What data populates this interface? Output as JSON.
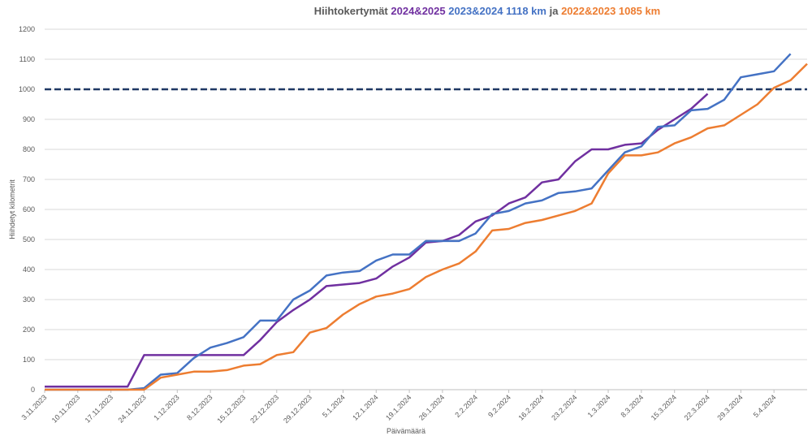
{
  "chart_data": {
    "type": "line",
    "title_parts": [
      {
        "text": "Hiihtokertymät",
        "color": "#595959"
      },
      {
        "text": "2024&2025",
        "color": "#7030a0"
      },
      {
        "text": "2023&2024 1118 km",
        "color": "#4472c4"
      },
      {
        "text": "ja",
        "color": "#595959"
      },
      {
        "text": "2022&2023 1085 km",
        "color": "#ed7d31"
      }
    ],
    "x_label": "Päivämäärä",
    "y_label": "Hiihdetyt kilometrit",
    "categories": [
      "3.11.2023",
      null,
      "10.11.2023",
      null,
      "17.11.2023",
      null,
      "24.11.2023",
      null,
      "1.12.2023",
      null,
      "8.12.2023",
      null,
      "15.12.2023",
      null,
      "22.12.2023",
      null,
      "29.12.2023",
      null,
      "5.1.2024",
      null,
      "12.1.2024",
      null,
      "19.1.2024",
      null,
      "26.1.2024",
      null,
      "2.2.2024",
      null,
      "9.2.2024",
      null,
      "16.2.2024",
      null,
      "23.2.2024",
      null,
      "1.3.2024",
      null,
      "8.3.2024",
      null,
      "15.3.2024",
      null,
      "22.3.2024",
      null,
      "29.3.2024",
      null,
      "5.4.2024",
      null,
      null
    ],
    "series": [
      {
        "color": "#7030a0",
        "values": [
          10,
          10,
          10,
          10,
          10,
          10,
          115,
          115,
          115,
          115,
          115,
          115,
          115,
          165,
          225,
          265,
          300,
          345,
          350,
          355,
          370,
          410,
          440,
          490,
          495,
          515,
          560,
          580,
          620,
          640,
          690,
          700,
          760,
          800,
          800,
          815,
          820,
          865,
          900,
          935,
          985,
          null,
          null,
          null,
          null,
          null,
          null
        ]
      },
      {
        "color": "#4472c4",
        "values": [
          0,
          0,
          0,
          0,
          0,
          0,
          5,
          50,
          55,
          105,
          140,
          155,
          175,
          230,
          230,
          300,
          330,
          380,
          390,
          395,
          430,
          450,
          450,
          495,
          495,
          495,
          520,
          585,
          595,
          620,
          630,
          655,
          660,
          670,
          730,
          790,
          810,
          875,
          880,
          930,
          935,
          965,
          1040,
          1050,
          1060,
          1118,
          null
        ]
      },
      {
        "color": "#ed7d31",
        "values": [
          0,
          0,
          0,
          0,
          0,
          0,
          0,
          40,
          50,
          60,
          60,
          65,
          80,
          85,
          115,
          125,
          190,
          205,
          250,
          285,
          310,
          320,
          335,
          375,
          400,
          420,
          460,
          530,
          535,
          555,
          565,
          580,
          595,
          620,
          720,
          780,
          780,
          790,
          820,
          840,
          870,
          880,
          915,
          950,
          1005,
          1030,
          1085
        ]
      }
    ],
    "reference_line": 1000,
    "reference_color": "#1f3864",
    "ylim": [
      0,
      1200
    ],
    "yticks": [
      0,
      100,
      200,
      300,
      400,
      500,
      600,
      700,
      800,
      900,
      1000,
      1100,
      1200
    ],
    "grid": true
  }
}
